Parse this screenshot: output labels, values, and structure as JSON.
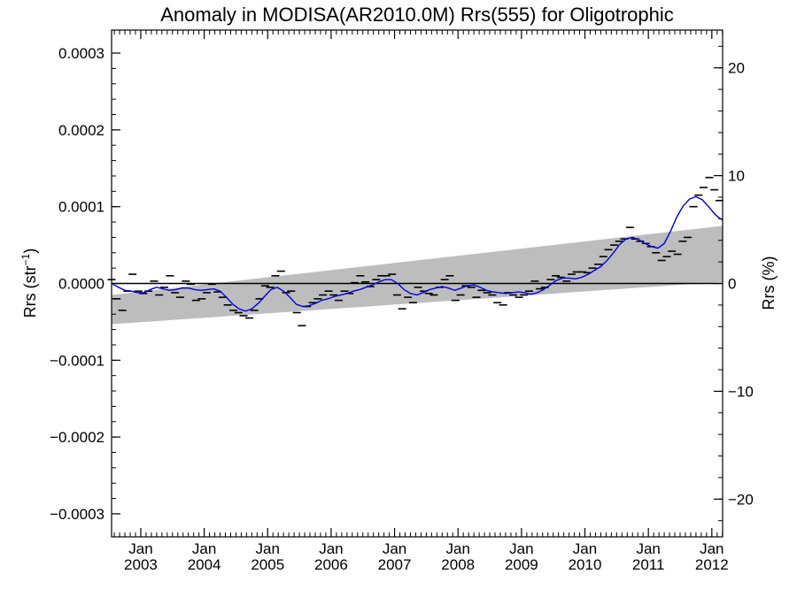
{
  "chart_data": {
    "type": "scatter",
    "title": "Anomaly in MODISA(AR2010.0M) Rrs(555) for Oligotrophic",
    "ylabel": "Rrs (str",
    "ylabel_sup": "−1",
    "ylabel_close": ")",
    "y2label": "Rrs (%)",
    "xlim": [
      2002.54,
      2012.17
    ],
    "ylim": [
      -0.00033,
      0.00033
    ],
    "y2lim": [
      -23.5,
      23.5
    ],
    "yticks": [
      {
        "value": 0.0003,
        "label": "0.0003"
      },
      {
        "value": 0.0002,
        "label": "0.0002"
      },
      {
        "value": 0.0001,
        "label": "0.0001"
      },
      {
        "value": 0.0,
        "label": "0.0000"
      },
      {
        "value": -0.0001,
        "label": "−0.0001"
      },
      {
        "value": -0.0002,
        "label": "−0.0002"
      },
      {
        "value": -0.0003,
        "label": "−0.0003"
      }
    ],
    "y2ticks": [
      {
        "value": 20,
        "label": "20"
      },
      {
        "value": 10,
        "label": "10"
      },
      {
        "value": 0,
        "label": "0"
      },
      {
        "value": -10,
        "label": "−10"
      },
      {
        "value": -20,
        "label": "−20"
      }
    ],
    "xticks": [
      {
        "value": 2003,
        "month": "Jan",
        "year": "2003"
      },
      {
        "value": 2004,
        "month": "Jan",
        "year": "2004"
      },
      {
        "value": 2005,
        "month": "Jan",
        "year": "2005"
      },
      {
        "value": 2006,
        "month": "Jan",
        "year": "2006"
      },
      {
        "value": 2007,
        "month": "Jan",
        "year": "2007"
      },
      {
        "value": 2008,
        "month": "Jan",
        "year": "2008"
      },
      {
        "value": 2009,
        "month": "Jan",
        "year": "2009"
      },
      {
        "value": 2010,
        "month": "Jan",
        "year": "2010"
      },
      {
        "value": 2011,
        "month": "Jan",
        "year": "2011"
      },
      {
        "value": 2012,
        "month": "Jan",
        "year": "2012"
      }
    ],
    "grid": false,
    "legend": "none",
    "colors": {
      "smooth": "#0000dd",
      "band": "#bdbdbd",
      "points": "#000000",
      "zero_line": "#000000"
    },
    "band": {
      "x": [
        2002.54,
        2012.17
      ],
      "lower": [
        -5.3e-05,
        2e-06
      ],
      "upper": [
        -1.5e-05,
        7.5e-05
      ]
    },
    "series": [
      {
        "marker": "dash",
        "x": [
          2002.54,
          2002.62,
          2002.71,
          2002.79,
          2002.87,
          2002.96,
          2003.04,
          2003.12,
          2003.21,
          2003.29,
          2003.37,
          2003.46,
          2003.54,
          2003.62,
          2003.71,
          2003.79,
          2003.87,
          2003.96,
          2004.04,
          2004.12,
          2004.21,
          2004.29,
          2004.37,
          2004.46,
          2004.54,
          2004.62,
          2004.71,
          2004.79,
          2004.87,
          2004.96,
          2005.04,
          2005.12,
          2005.21,
          2005.29,
          2005.37,
          2005.46,
          2005.54,
          2005.62,
          2005.71,
          2005.79,
          2005.87,
          2005.96,
          2006.04,
          2006.12,
          2006.21,
          2006.29,
          2006.37,
          2006.46,
          2006.54,
          2006.62,
          2006.71,
          2006.79,
          2006.87,
          2006.96,
          2007.04,
          2007.12,
          2007.21,
          2007.29,
          2007.37,
          2007.46,
          2007.54,
          2007.62,
          2007.71,
          2007.79,
          2007.87,
          2007.96,
          2008.04,
          2008.12,
          2008.21,
          2008.29,
          2008.37,
          2008.46,
          2008.54,
          2008.62,
          2008.71,
          2008.79,
          2008.87,
          2008.96,
          2009.04,
          2009.12,
          2009.21,
          2009.29,
          2009.37,
          2009.46,
          2009.54,
          2009.62,
          2009.71,
          2009.79,
          2009.87,
          2009.96,
          2010.04,
          2010.12,
          2010.21,
          2010.29,
          2010.37,
          2010.46,
          2010.54,
          2010.62,
          2010.71,
          2010.79,
          2010.87,
          2010.96,
          2011.04,
          2011.12,
          2011.21,
          2011.29,
          2011.37,
          2011.46,
          2011.54,
          2011.62,
          2011.71,
          2011.79,
          2011.87,
          2011.96,
          2012.04,
          2012.12
        ],
        "y": [
          5e-06,
          -2e-05,
          -3.5e-05,
          -1e-05,
          1.2e-05,
          -1e-05,
          -1.3e-05,
          -1e-05,
          3e-06,
          -1.5e-05,
          -5e-06,
          1e-05,
          -1.2e-05,
          -1.8e-05,
          3e-06,
          -1e-06,
          -2.2e-05,
          -2e-05,
          -1.2e-05,
          -1e-06,
          -1.1e-05,
          -1.8e-05,
          -2.8e-05,
          -3.5e-05,
          -3.8e-05,
          -4.2e-05,
          -4.5e-05,
          -3.5e-05,
          -2e-05,
          -3e-06,
          -5e-06,
          1e-05,
          1.6e-05,
          -1.2e-05,
          -1e-05,
          -3.8e-05,
          -5.5e-05,
          -3e-05,
          -2.5e-05,
          -2e-05,
          -1.5e-05,
          -1e-05,
          -1.5e-05,
          -2.2e-05,
          -1e-05,
          -1.3e-05,
          1e-06,
          1e-05,
          2e-06,
          -4e-06,
          5e-06,
          1e-05,
          1e-05,
          1.2e-05,
          -1.5e-05,
          -3.3e-05,
          -1.8e-05,
          -2.5e-05,
          -5e-06,
          -1e-05,
          -1.3e-05,
          -1.5e-05,
          -5e-06,
          5e-06,
          1e-05,
          -2.2e-05,
          -1.5e-05,
          -3e-06,
          -5e-06,
          -1.8e-05,
          -9e-06,
          -1.2e-05,
          -1.5e-05,
          -2.5e-05,
          -2.8e-05,
          -1.2e-05,
          -1.5e-05,
          -1.8e-05,
          -1.5e-05,
          -1e-05,
          3e-06,
          -7e-06,
          -5e-06,
          5e-06,
          1e-05,
          8e-06,
          3e-06,
          1.2e-05,
          1.5e-05,
          1.5e-05,
          1.4e-05,
          2e-05,
          2.5e-05,
          3.5e-05,
          4.4e-05,
          5e-05,
          5.5e-05,
          5.8e-05,
          7.3e-05,
          5.8e-05,
          5.5e-05,
          5.2e-05,
          4.8e-05,
          4e-05,
          3e-05,
          3.5e-05,
          4.2e-05,
          3.8e-05,
          5.5e-05,
          6e-05,
          0.0001,
          0.000115,
          0.000125,
          0.000138,
          0.000122,
          0.000108
        ]
      },
      {
        "marker": "line",
        "x": [
          2002.54,
          2002.65,
          2002.75,
          2002.85,
          2002.95,
          2003.05,
          2003.15,
          2003.25,
          2003.35,
          2003.45,
          2003.55,
          2003.65,
          2003.75,
          2003.85,
          2003.95,
          2004.05,
          2004.15,
          2004.25,
          2004.35,
          2004.45,
          2004.55,
          2004.65,
          2004.75,
          2004.85,
          2004.95,
          2005.05,
          2005.15,
          2005.25,
          2005.35,
          2005.45,
          2005.55,
          2005.65,
          2005.75,
          2005.85,
          2005.95,
          2006.05,
          2006.15,
          2006.25,
          2006.35,
          2006.45,
          2006.55,
          2006.65,
          2006.75,
          2006.85,
          2006.95,
          2007.05,
          2007.15,
          2007.25,
          2007.35,
          2007.45,
          2007.55,
          2007.65,
          2007.75,
          2007.85,
          2007.95,
          2008.05,
          2008.15,
          2008.25,
          2008.35,
          2008.45,
          2008.55,
          2008.65,
          2008.75,
          2008.85,
          2008.95,
          2009.05,
          2009.15,
          2009.25,
          2009.35,
          2009.45,
          2009.55,
          2009.65,
          2009.75,
          2009.85,
          2009.95,
          2010.05,
          2010.15,
          2010.25,
          2010.35,
          2010.45,
          2010.55,
          2010.65,
          2010.75,
          2010.85,
          2010.95,
          2011.05,
          2011.15,
          2011.25,
          2011.35,
          2011.45,
          2011.55,
          2011.65,
          2011.75,
          2011.85,
          2011.95,
          2012.05,
          2012.12,
          2012.17
        ],
        "y": [
          0.0,
          -5e-06,
          -9e-06,
          -1e-05,
          -1.2e-05,
          -1.2e-05,
          -8e-06,
          -5e-06,
          -7e-06,
          -9e-06,
          -8e-06,
          -6e-06,
          -6e-06,
          -8e-06,
          -9e-06,
          -8e-06,
          -7e-06,
          -1e-05,
          -1.8e-05,
          -2.7e-05,
          -3.3e-05,
          -3.6e-05,
          -3.3e-05,
          -2.6e-05,
          -1.7e-05,
          -8e-06,
          -5e-06,
          -1e-05,
          -1.8e-05,
          -2.7e-05,
          -3e-05,
          -2.9e-05,
          -2.6e-05,
          -2.2e-05,
          -2e-05,
          -1.7e-05,
          -1.5e-05,
          -1.3e-05,
          -1e-05,
          -8e-06,
          -5e-06,
          -2e-06,
          2e-06,
          5e-06,
          5e-06,
          0.0,
          -8e-06,
          -1.3e-05,
          -1.5e-05,
          -1.2e-05,
          -8e-06,
          -6e-06,
          -4e-06,
          -6e-06,
          -9e-06,
          -6e-06,
          -3e-06,
          -2e-06,
          -5e-06,
          -9e-06,
          -1.1e-05,
          -1.2e-05,
          -1.3e-05,
          -1.2e-05,
          -1.1e-05,
          -1.2e-05,
          -1.4e-05,
          -1.2e-05,
          -8e-06,
          -2e-06,
          4e-06,
          7e-06,
          7e-06,
          6e-06,
          8e-06,
          1.2e-05,
          1.7e-05,
          2.2e-05,
          3e-05,
          4e-05,
          5.1e-05,
          5.8e-05,
          6e-05,
          5.7e-05,
          5.2e-05,
          4.8e-05,
          4.6e-05,
          5.2e-05,
          6.8e-05,
          8.7e-05,
          0.000101,
          0.00011,
          0.000113,
          0.000109,
          0.0001,
          9e-05,
          8.5e-05,
          8.3e-05
        ]
      }
    ]
  }
}
